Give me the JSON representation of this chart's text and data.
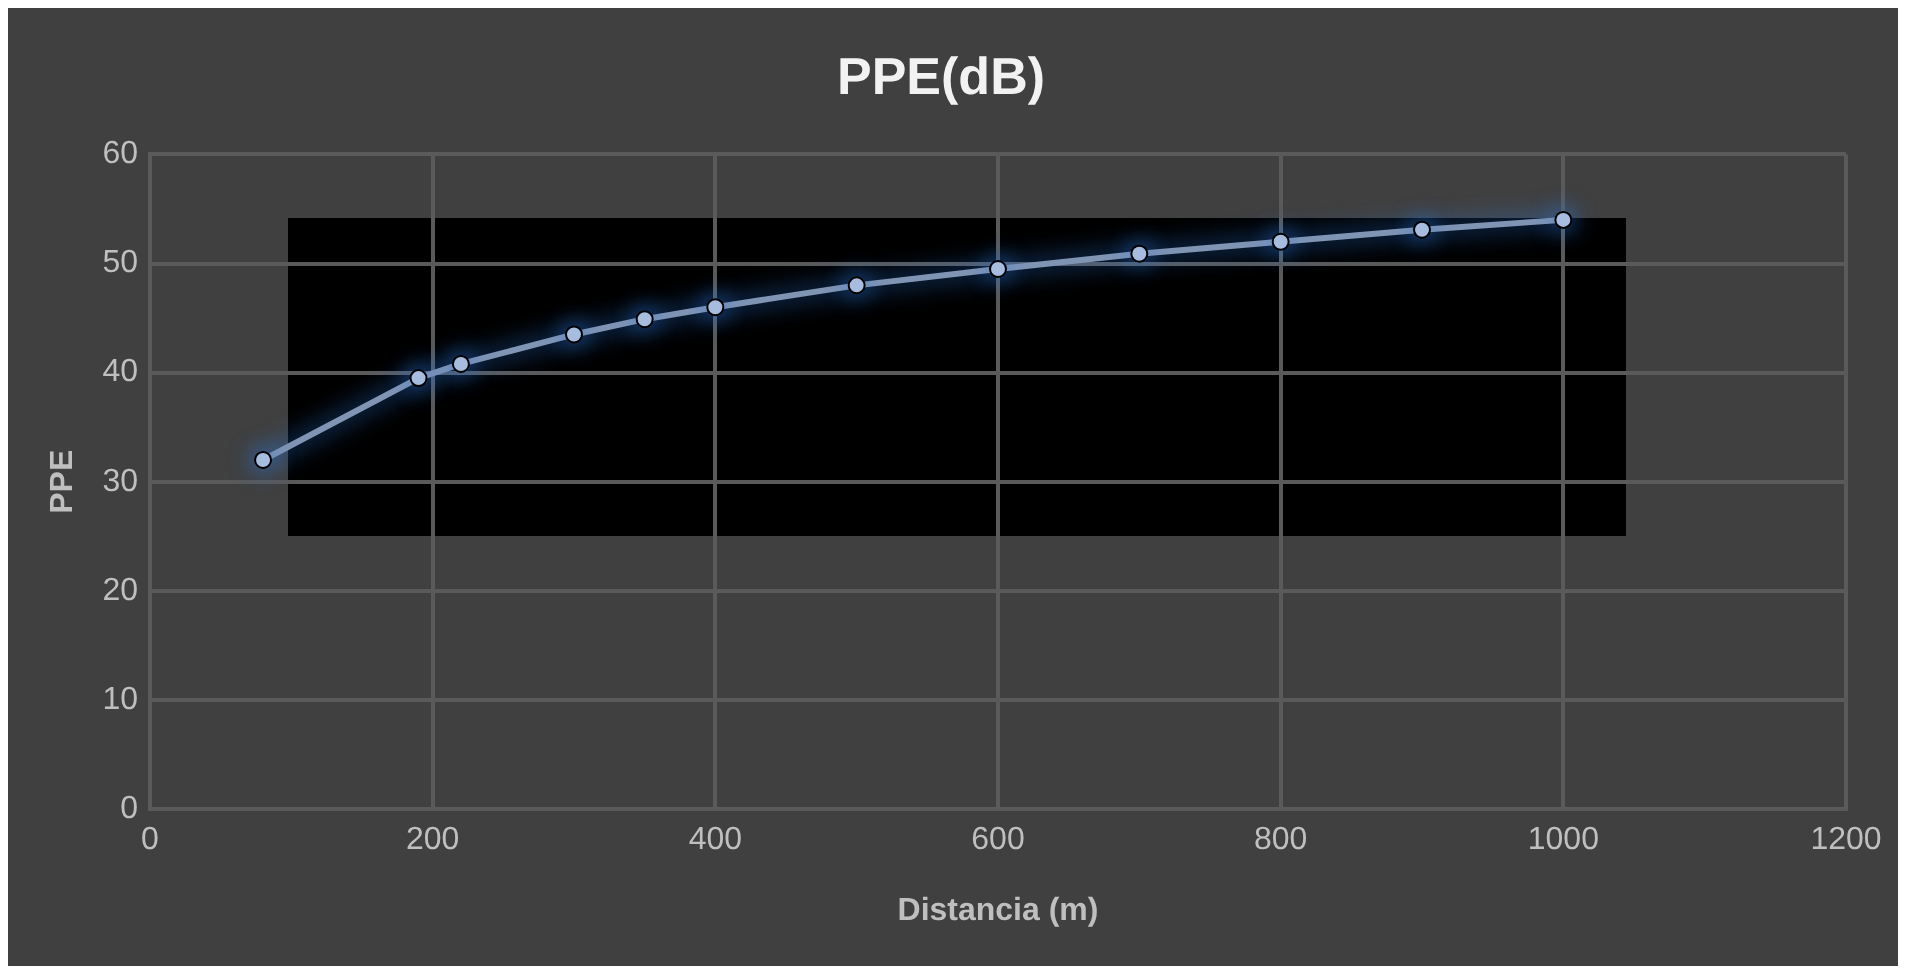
{
  "chart_data": {
    "type": "line",
    "title": "PPE(dB)",
    "xlabel": "Distancia (m)",
    "ylabel": "PPE",
    "x": [
      80,
      190,
      220,
      300,
      350,
      400,
      500,
      600,
      700,
      800,
      900,
      1000
    ],
    "series": [
      {
        "color": "#8094b4",
        "values": [
          32,
          39.5,
          40.8,
          43.5,
          44.9,
          46,
          48,
          49.5,
          50.9,
          52,
          53.1,
          54
        ]
      }
    ],
    "xlim": [
      0,
      1200
    ],
    "xticks": [
      0,
      200,
      400,
      600,
      800,
      1000,
      1200
    ],
    "ylim": [
      0,
      60
    ],
    "yticks": [
      0,
      10,
      20,
      30,
      40,
      50,
      60
    ],
    "grid": true,
    "legend": false,
    "marker": "circle",
    "line_style": "solid"
  }
}
